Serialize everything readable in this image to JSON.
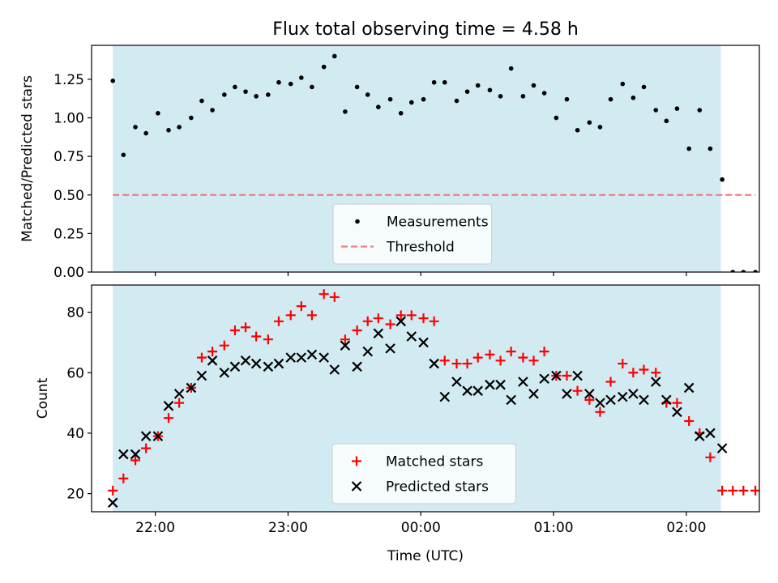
{
  "chart_data": {
    "title": "Flux total observing time = 4.58 h",
    "type": "scatter",
    "xlabel": "Time (UTC)",
    "xlim_hours": [
      21.52,
      26.55
    ],
    "x_tick_labels": [
      "22:00",
      "23:00",
      "00:00",
      "01:00",
      "02:00"
    ],
    "x_tick_hours": [
      22,
      23,
      24,
      25,
      26
    ],
    "observing_window_hours": [
      21.68,
      26.26
    ],
    "observing_window_color": "#add8e6",
    "grid": false,
    "panels": [
      {
        "ylabel": "Matched/Predicted stars",
        "ylim": [
          0,
          1.47
        ],
        "y_ticks": [
          0.0,
          0.25,
          0.5,
          0.75,
          1.0,
          1.25
        ],
        "y_tick_labels": [
          "0.00",
          "0.25",
          "0.50",
          "0.75",
          "1.00",
          "1.25"
        ],
        "legend_position": "bottom-center",
        "series": [
          {
            "name": "Measurements",
            "marker": "dot",
            "color": "#000000",
            "x": [
              21.68,
              21.76,
              21.85,
              21.93,
              22.02,
              22.1,
              22.18,
              22.27,
              22.35,
              22.43,
              22.52,
              22.6,
              22.68,
              22.76,
              22.85,
              22.93,
              23.02,
              23.1,
              23.18,
              23.27,
              23.35,
              23.43,
              23.52,
              23.6,
              23.68,
              23.77,
              23.85,
              23.93,
              24.02,
              24.1,
              24.18,
              24.27,
              24.35,
              24.43,
              24.52,
              24.6,
              24.68,
              24.77,
              24.85,
              24.93,
              25.02,
              25.1,
              25.18,
              25.27,
              25.35,
              25.43,
              25.52,
              25.6,
              25.68,
              25.77,
              25.85,
              25.93,
              26.02,
              26.1,
              26.18,
              26.27,
              26.35,
              26.43,
              26.52
            ],
            "y": [
              1.24,
              0.76,
              0.94,
              0.9,
              1.03,
              0.92,
              0.94,
              1.0,
              1.11,
              1.05,
              1.15,
              1.2,
              1.17,
              1.14,
              1.15,
              1.23,
              1.22,
              1.26,
              1.2,
              1.33,
              1.4,
              1.04,
              1.2,
              1.15,
              1.07,
              1.12,
              1.03,
              1.1,
              1.12,
              1.23,
              1.23,
              1.11,
              1.17,
              1.21,
              1.18,
              1.14,
              1.32,
              1.14,
              1.21,
              1.16,
              1.0,
              1.12,
              0.92,
              0.97,
              0.94,
              1.12,
              1.22,
              1.13,
              1.2,
              1.05,
              0.98,
              1.06,
              0.8,
              1.05,
              0.8,
              0.6,
              0.0,
              0.0,
              0.0
            ]
          },
          {
            "name": "Threshold",
            "marker": "dashed-line",
            "color": "#f08080",
            "x": [
              21.68,
              26.52
            ],
            "y": [
              0.5,
              0.5
            ]
          }
        ]
      },
      {
        "ylabel": "Count",
        "ylim": [
          14,
          89
        ],
        "y_ticks": [
          20,
          40,
          60,
          80
        ],
        "y_tick_labels": [
          "20",
          "40",
          "60",
          "80"
        ],
        "legend_position": "bottom-center",
        "series": [
          {
            "name": "Matched stars",
            "marker": "plus",
            "color": "#ff0000",
            "x": [
              21.68,
              21.76,
              21.85,
              21.93,
              22.02,
              22.1,
              22.18,
              22.27,
              22.35,
              22.43,
              22.52,
              22.6,
              22.68,
              22.76,
              22.85,
              22.93,
              23.02,
              23.1,
              23.18,
              23.27,
              23.35,
              23.43,
              23.52,
              23.6,
              23.68,
              23.77,
              23.85,
              23.93,
              24.02,
              24.1,
              24.18,
              24.27,
              24.35,
              24.43,
              24.52,
              24.6,
              24.68,
              24.77,
              24.85,
              24.93,
              25.02,
              25.1,
              25.18,
              25.27,
              25.35,
              25.43,
              25.52,
              25.6,
              25.68,
              25.77,
              25.85,
              25.93,
              26.02,
              26.1,
              26.18,
              26.27,
              26.35,
              26.43,
              26.52
            ],
            "y": [
              21,
              25,
              31,
              35,
              39,
              45,
              50,
              55,
              65,
              67,
              69,
              74,
              75,
              72,
              71,
              77,
              79,
              82,
              79,
              86,
              85,
              71,
              74,
              77,
              78,
              76,
              79,
              79,
              78,
              77,
              64,
              63,
              63,
              65,
              66,
              64,
              67,
              65,
              64,
              67,
              59,
              59,
              54,
              51,
              47,
              57,
              63,
              60,
              61,
              60,
              50,
              50,
              44,
              40,
              32,
              21,
              21,
              21,
              21
            ]
          },
          {
            "name": "Predicted stars",
            "marker": "x",
            "color": "#000000",
            "x": [
              21.68,
              21.76,
              21.85,
              21.93,
              22.02,
              22.1,
              22.18,
              22.27,
              22.35,
              22.43,
              22.52,
              22.6,
              22.68,
              22.76,
              22.85,
              22.93,
              23.02,
              23.1,
              23.18,
              23.27,
              23.35,
              23.43,
              23.52,
              23.6,
              23.68,
              23.77,
              23.85,
              23.93,
              24.02,
              24.1,
              24.18,
              24.27,
              24.35,
              24.43,
              24.52,
              24.6,
              24.68,
              24.77,
              24.85,
              24.93,
              25.02,
              25.1,
              25.18,
              25.27,
              25.35,
              25.43,
              25.52,
              25.6,
              25.68,
              25.77,
              25.85,
              25.93,
              26.02,
              26.1,
              26.18,
              26.27
            ],
            "y": [
              17,
              33,
              33,
              39,
              39,
              49,
              53,
              55,
              59,
              64,
              60,
              62,
              64,
              63,
              62,
              63,
              65,
              65,
              66,
              65,
              61,
              69,
              62,
              67,
              73,
              68,
              77,
              72,
              70,
              63,
              52,
              57,
              54,
              54,
              56,
              56,
              51,
              57,
              53,
              58,
              59,
              53,
              59,
              53,
              50,
              51,
              52,
              53,
              51,
              57,
              51,
              47,
              55,
              39,
              40,
              35
            ]
          }
        ]
      }
    ]
  }
}
